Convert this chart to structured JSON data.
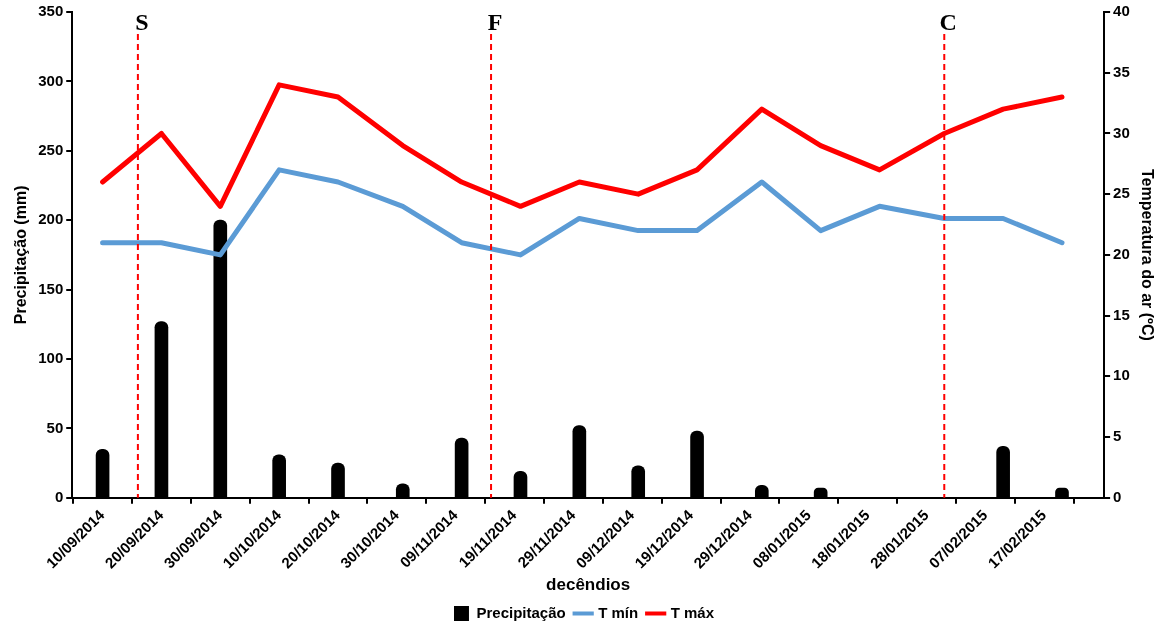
{
  "chart_data": {
    "type": "bar",
    "xlabel": "decêndios",
    "ylabel": "Precipitação (mm)",
    "y2label": "Temperatura do ar (ºC)",
    "x": [
      "2014-09-10",
      "2014-09-20",
      "2014-09-30",
      "2014-10-10",
      "2014-10-20",
      "2014-10-31",
      "2014-11-10",
      "2014-11-20",
      "2014-11-30",
      "2014-12-10",
      "2014-12-20",
      "2014-12-31",
      "2015-01-10",
      "2015-01-20",
      "2015-01-31",
      "2015-02-10",
      "2015-02-20"
    ],
    "series": [
      {
        "name": "Precipitação",
        "color": "#000000",
        "values": [
          35,
          127,
          200,
          31,
          25,
          10,
          43,
          19,
          52,
          23,
          48,
          9,
          7,
          0,
          0,
          37,
          7
        ]
      },
      {
        "name": "T mín",
        "type": "line",
        "axis": "y2",
        "color": "#5b9bd5",
        "values": [
          21,
          21,
          20,
          27,
          26,
          24,
          21,
          20,
          23,
          22,
          22,
          26,
          22,
          24,
          23,
          23,
          21
        ]
      },
      {
        "name": "T máx",
        "type": "line",
        "axis": "y2",
        "color": "#ff0000",
        "values": [
          26,
          30,
          24,
          34,
          33,
          29,
          26,
          24,
          26,
          25,
          27,
          32,
          29,
          27,
          30,
          32,
          33
        ]
      }
    ],
    "xlim": [
      "2014-09-10",
      "2015-02-22"
    ],
    "xticks": [
      {
        "value": "2014-09-10",
        "label": "10/09/2014"
      },
      {
        "value": "2014-09-20",
        "label": "20/09/2014"
      },
      {
        "value": "2014-09-30",
        "label": "30/09/2014"
      },
      {
        "value": "2014-10-10",
        "label": "10/10/2014"
      },
      {
        "value": "2014-10-20",
        "label": "20/10/2014"
      },
      {
        "value": "2014-10-30",
        "label": "30/10/2014"
      },
      {
        "value": "2014-11-09",
        "label": "09/11/2014"
      },
      {
        "value": "2014-11-19",
        "label": "19/11/2014"
      },
      {
        "value": "2014-11-29",
        "label": "29/11/2014"
      },
      {
        "value": "2014-12-09",
        "label": "09/12/2014"
      },
      {
        "value": "2014-12-19",
        "label": "19/12/2014"
      },
      {
        "value": "2014-12-29",
        "label": "29/12/2014"
      },
      {
        "value": "2015-01-08",
        "label": "08/01/2015"
      },
      {
        "value": "2015-01-18",
        "label": "18/01/2015"
      },
      {
        "value": "2015-01-28",
        "label": "28/01/2015"
      },
      {
        "value": "2015-02-07",
        "label": "07/02/2015"
      },
      {
        "value": "2015-02-17",
        "label": "17/02/2015"
      }
    ],
    "ylim": [
      0,
      350
    ],
    "yticks": [
      0,
      50,
      100,
      150,
      200,
      250,
      300,
      350
    ],
    "y2lim": [
      0,
      40
    ],
    "y2ticks": [
      0,
      5,
      10,
      15,
      20,
      25,
      30,
      35,
      40
    ],
    "ref_lines": [
      {
        "axis": "x",
        "value": "2014-09-16",
        "label": "S",
        "color": "#ff0000",
        "line_style": "dashed"
      },
      {
        "axis": "x",
        "value": "2014-11-15",
        "label": "F",
        "color": "#ff0000",
        "line_style": "dashed"
      },
      {
        "axis": "x",
        "value": "2015-01-31",
        "label": "C",
        "color": "#ff0000",
        "line_style": "dashed"
      }
    ],
    "legend": "bottom"
  }
}
